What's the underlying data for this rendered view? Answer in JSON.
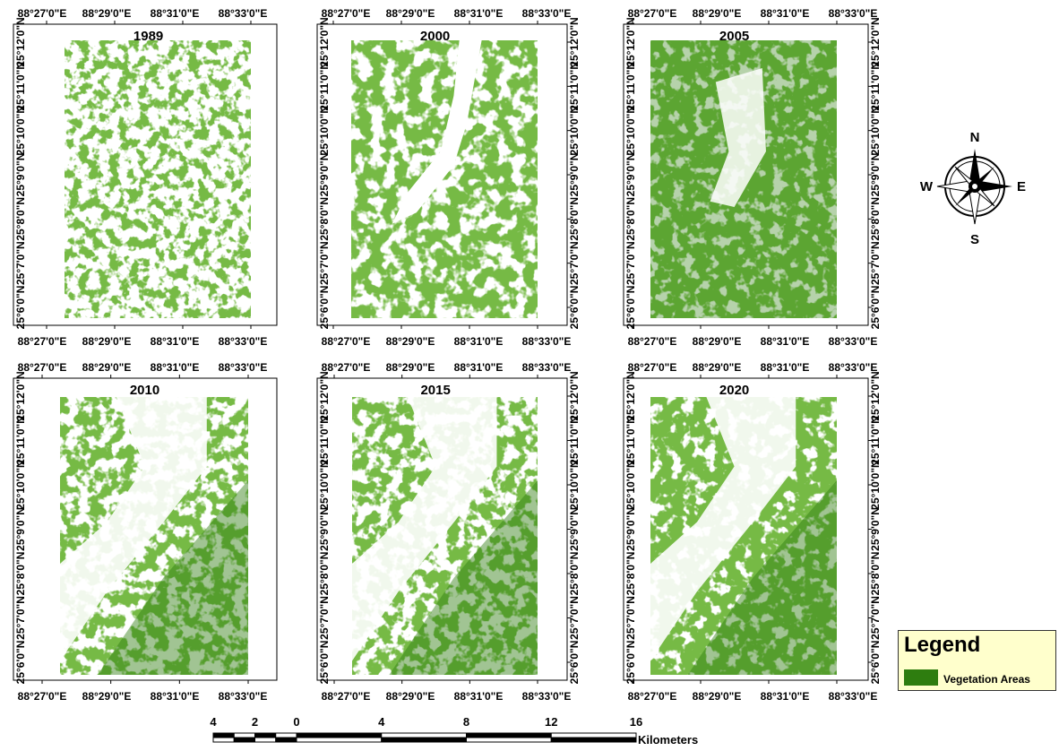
{
  "maps": [
    {
      "year": "1989",
      "pattern": "scattered"
    },
    {
      "year": "2000",
      "pattern": "lake"
    },
    {
      "year": "2005",
      "pattern": "dense"
    },
    {
      "year": "2010",
      "pattern": "diagonal"
    },
    {
      "year": "2015",
      "pattern": "diagonal"
    },
    {
      "year": "2020",
      "pattern": "diagonal"
    }
  ],
  "longitude_labels": [
    "88°27'0\"E",
    "88°29'0\"E",
    "88°31'0\"E",
    "88°33'0\"E"
  ],
  "latitude_labels": [
    "25°12'0\"N",
    "25°11'0\"N",
    "25°10'0\"N",
    "25°9'0\"N",
    "25°8'0\"N",
    "25°7'0\"N",
    "25°6'0\"N"
  ],
  "north_arrow": {
    "n": "N",
    "s": "S",
    "e": "E",
    "w": "W",
    "icon": "compass-rose-icon"
  },
  "legend": {
    "title": "Legend",
    "items": [
      {
        "label": "Vegetation Areas",
        "color": "#2e7d0f"
      }
    ]
  },
  "scale_bar": {
    "ticks": [
      "4",
      "2",
      "0",
      "4",
      "8",
      "12",
      "16"
    ],
    "unit": "Kilometers"
  },
  "colors": {
    "vegetation": "#2e7d0f",
    "background": "#ffffff"
  }
}
